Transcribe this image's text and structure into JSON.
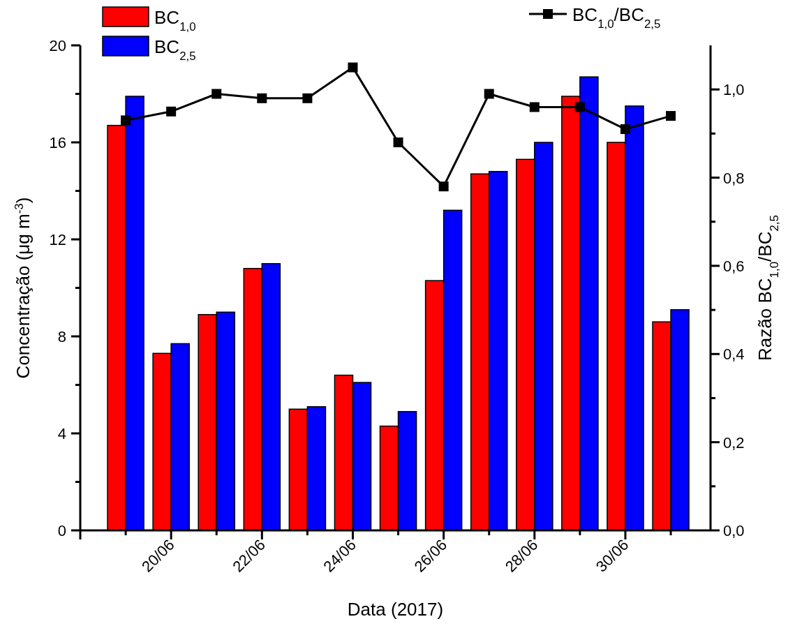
{
  "chart_data": {
    "type": "bar",
    "x": [
      "2017-06-19",
      "2017-06-20",
      "2017-06-21",
      "2017-06-22",
      "2017-06-23",
      "2017-06-24",
      "2017-06-25",
      "2017-06-26",
      "2017-06-27",
      "2017-06-28",
      "2017-06-29",
      "2017-06-30",
      "2017-07-01"
    ],
    "xlabel": "Data (2017)",
    "ylabel": "Concentração (μg m$^{-3}$)",
    "y2label": "Razão BC$_{1,0}$/BC$_{2,5}$",
    "series": [
      {
        "name": "BC$_{1,0}$",
        "color": "#ff0000",
        "values": [
          16.7,
          7.3,
          8.9,
          10.8,
          5.0,
          6.4,
          4.3,
          10.3,
          14.7,
          15.3,
          17.9,
          16.0,
          8.6
        ]
      },
      {
        "name": "BC$_{2,5}$",
        "color": "#0000ff",
        "values": [
          17.9,
          7.7,
          9.0,
          11.0,
          5.1,
          6.1,
          4.9,
          13.2,
          14.8,
          16.0,
          18.7,
          17.5,
          9.1
        ]
      },
      {
        "name": "BC$_{1,0}$/BC$_{2,5}$",
        "type": "line",
        "axis": "y2",
        "color": "#000000",
        "marker": "square",
        "line_style": "solid",
        "values": [
          0.93,
          0.95,
          0.99,
          0.98,
          0.98,
          1.05,
          0.88,
          0.78,
          0.99,
          0.96,
          0.96,
          0.91,
          0.94
        ]
      }
    ],
    "xlim": [
      "2017-06-18",
      "2017-07-01T21:00"
    ],
    "xticks": [
      {
        "value": "2017-06-18",
        "label": null
      },
      {
        "value": "2017-06-19",
        "label": null
      },
      {
        "value": "2017-06-20",
        "label": "20/06"
      },
      {
        "value": "2017-06-21",
        "label": null
      },
      {
        "value": "2017-06-22",
        "label": "22/06"
      },
      {
        "value": "2017-06-23",
        "label": null
      },
      {
        "value": "2017-06-24",
        "label": "24/06"
      },
      {
        "value": "2017-06-25",
        "label": null
      },
      {
        "value": "2017-06-26",
        "label": "26/06"
      },
      {
        "value": "2017-06-27",
        "label": null
      },
      {
        "value": "2017-06-28",
        "label": "28/06"
      },
      {
        "value": "2017-06-29",
        "label": null
      },
      {
        "value": "2017-06-30",
        "label": "30/06"
      },
      {
        "value": "2017-07-01",
        "label": null
      }
    ],
    "ylim": [
      0,
      20
    ],
    "yticks": [
      0,
      {
        "value": 2,
        "label": null
      },
      4,
      {
        "value": 6,
        "label": null
      },
      8,
      {
        "value": 10,
        "label": null
      },
      12,
      {
        "value": 14,
        "label": null
      },
      16,
      {
        "value": 18,
        "label": null
      },
      20
    ],
    "y2lim": [
      0,
      1.1
    ],
    "y2ticks": [
      {
        "value": 0,
        "label": "0,0"
      },
      {
        "value": 0.1,
        "label": null
      },
      {
        "value": 0.2,
        "label": "0,2"
      },
      {
        "value": 0.3,
        "label": null
      },
      {
        "value": 0.4,
        "label": "0,4"
      },
      {
        "value": 0.5,
        "label": null
      },
      {
        "value": 0.6,
        "label": "0,6"
      },
      {
        "value": 0.7,
        "label": null
      },
      {
        "value": 0.8,
        "label": "0,8"
      },
      {
        "value": 0.9,
        "label": null
      },
      {
        "value": 1.0,
        "label": "1,0"
      }
    ],
    "legend": "top",
    "grid": false
  }
}
